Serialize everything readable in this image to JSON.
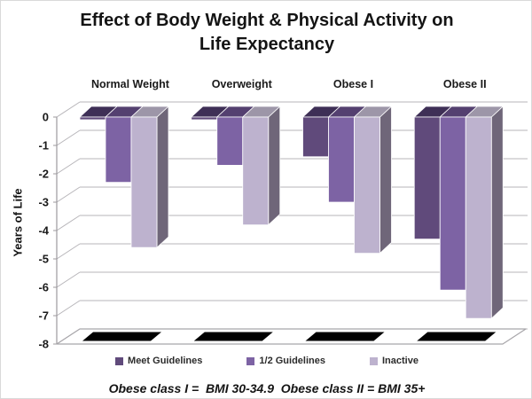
{
  "page": {
    "title_line1": "Effect of Body Weight & Physical Activity on",
    "title_line2": "Life Expectancy",
    "footnote": "Obese class I =  BMI 30-34.9  Obese class II = BMI 35+"
  },
  "chart_data": {
    "type": "bar",
    "style": "3d-column-negative",
    "title": "Effect of Body Weight & Physical Activity on Life Expectancy",
    "ylabel": "Years of Life",
    "ylim": [
      -8,
      0
    ],
    "yticks": [
      0,
      -1,
      -2,
      -3,
      -4,
      -5,
      -6,
      -7,
      -8
    ],
    "grid": true,
    "legend_position": "bottom",
    "categories": [
      "Normal Weight",
      "Overweight",
      "Obese I",
      "Obese II"
    ],
    "series": [
      {
        "name": "Meet Guidelines",
        "color": "#604a7b",
        "top_color": "#3e2f56",
        "side_color": "#4b3a62",
        "values": [
          0,
          0,
          -1.4,
          -4.3
        ]
      },
      {
        "name": "1/2 Guidelines",
        "color": "#7d63a4",
        "top_color": "#544070",
        "side_color": "#645084",
        "values": [
          -2.3,
          -1.7,
          -3.0,
          -6.1
        ]
      },
      {
        "name": "Inactive",
        "color": "#bdb2ce",
        "top_color": "#9d96a8",
        "side_color": "#6f6679",
        "values": [
          -4.6,
          -3.8,
          -4.8,
          -7.1
        ]
      }
    ],
    "floor_marker_color": "#000000",
    "grid_color": "#b7b5b9",
    "axis_color": "#9c9a9e",
    "tick_label_color": "#1a1a1a",
    "category_label_color": "#1a1a1a"
  }
}
